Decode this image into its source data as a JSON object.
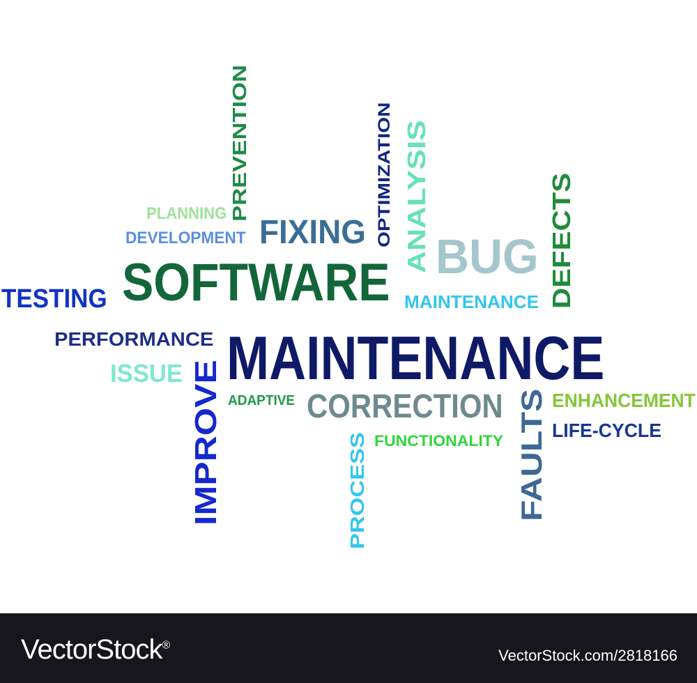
{
  "words": [
    {
      "id": "maintenance-main",
      "text": "MAINTENANCE",
      "color": "#0f1a66",
      "size": 88,
      "vertical": false
    },
    {
      "id": "software",
      "text": "SOFTWARE",
      "color": "#13663a",
      "size": 76,
      "vertical": false
    },
    {
      "id": "bug",
      "text": "BUG",
      "color": "#a4c6cc",
      "size": 70,
      "vertical": false
    },
    {
      "id": "fixing",
      "text": "FIXING",
      "color": "#3a6e96",
      "size": 48,
      "vertical": false
    },
    {
      "id": "correction",
      "text": "CORRECTION",
      "color": "#6e8a8f",
      "size": 48,
      "vertical": false
    },
    {
      "id": "testing",
      "text": "TESTING",
      "color": "#1133c4",
      "size": 38,
      "vertical": false
    },
    {
      "id": "issue",
      "text": "ISSUE",
      "color": "#7fe7d3",
      "size": 36,
      "vertical": false
    },
    {
      "id": "performance",
      "text": "PERFORMANCE",
      "color": "#1c2f8a",
      "size": 28,
      "vertical": false
    },
    {
      "id": "maintenance-small",
      "text": "MAINTENANCE",
      "color": "#33c5f0",
      "size": 26,
      "vertical": false
    },
    {
      "id": "enhancement",
      "text": "ENHANCEMENT",
      "color": "#86c63a",
      "size": 28,
      "vertical": false
    },
    {
      "id": "life-cycle",
      "text": "LIFE-CYCLE",
      "color": "#1a3694",
      "size": 28,
      "vertical": false
    },
    {
      "id": "development",
      "text": "DEVELOPMENT",
      "color": "#5b8fe0",
      "size": 24,
      "vertical": false
    },
    {
      "id": "planning",
      "text": "PLANNING",
      "color": "#9ee29a",
      "size": 24,
      "vertical": false
    },
    {
      "id": "functionality",
      "text": "FUNCTIONALITY",
      "color": "#2fd63b",
      "size": 22,
      "vertical": false
    },
    {
      "id": "adaptive",
      "text": "ADAPTIVE",
      "color": "#1e9a46",
      "size": 20,
      "vertical": false
    },
    {
      "id": "prevention",
      "text": "PREVENTION",
      "color": "#1e8a48",
      "size": 28,
      "vertical": true
    },
    {
      "id": "optimization",
      "text": "OPTIMIZATION",
      "color": "#102680",
      "size": 24,
      "vertical": true
    },
    {
      "id": "analysis",
      "text": "ANALYSIS",
      "color": "#68e0bb",
      "size": 36,
      "vertical": true
    },
    {
      "id": "defects",
      "text": "DEFECTS",
      "color": "#1f8c3a",
      "size": 36,
      "vertical": true
    },
    {
      "id": "improve",
      "text": "IMPROVE",
      "color": "#1428cc",
      "size": 44,
      "vertical": true
    },
    {
      "id": "process",
      "text": "PROCESS",
      "color": "#35c6ee",
      "size": 28,
      "vertical": true
    },
    {
      "id": "faults",
      "text": "FAULTS",
      "color": "#3e6895",
      "size": 42,
      "vertical": true
    }
  ],
  "footer": {
    "brand": "VectorStock",
    "registered": "®",
    "stock_id": "VectorStock.com/2818166"
  }
}
